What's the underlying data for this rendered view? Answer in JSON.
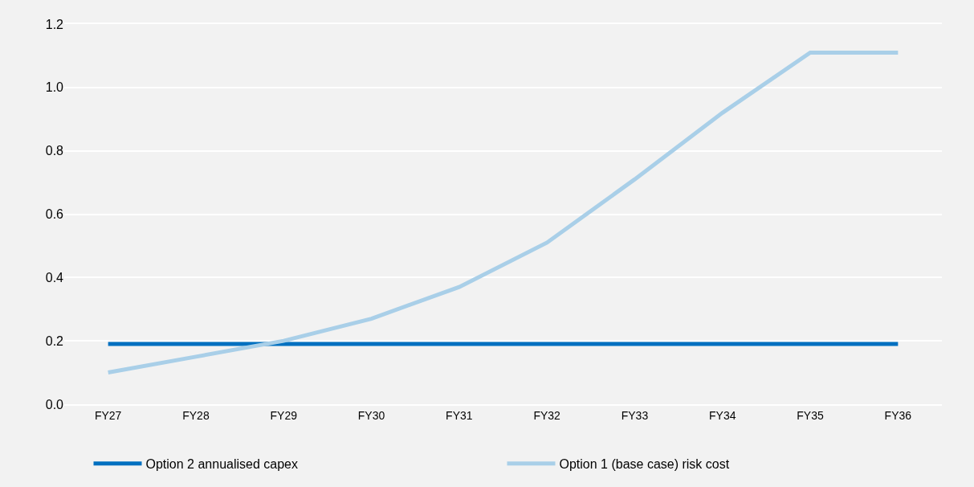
{
  "chart_data": {
    "type": "line",
    "categories": [
      "FY27",
      "FY28",
      "FY29",
      "FY30",
      "FY31",
      "FY32",
      "FY33",
      "FY34",
      "FY35",
      "FY36"
    ],
    "series": [
      {
        "name": "Option 2 annualised capex",
        "color": "#0070c0",
        "values": [
          0.19,
          0.19,
          0.19,
          0.19,
          0.19,
          0.19,
          0.19,
          0.19,
          0.19,
          0.19
        ]
      },
      {
        "name": "Option 1 (base case) risk cost",
        "color": "#a9cfe8",
        "values": [
          0.1,
          0.15,
          0.2,
          0.27,
          0.37,
          0.51,
          0.71,
          0.92,
          1.11,
          1.11
        ]
      }
    ],
    "ylim": [
      0,
      1.2
    ],
    "yticks": [
      {
        "value": 0,
        "label": "0.0"
      },
      0.2,
      0.4,
      0.6,
      0.8,
      {
        "value": 1,
        "label": "1.0"
      },
      1.2
    ],
    "grid": "y",
    "legend": "bottom",
    "marker": "none",
    "line_style": "solid"
  }
}
